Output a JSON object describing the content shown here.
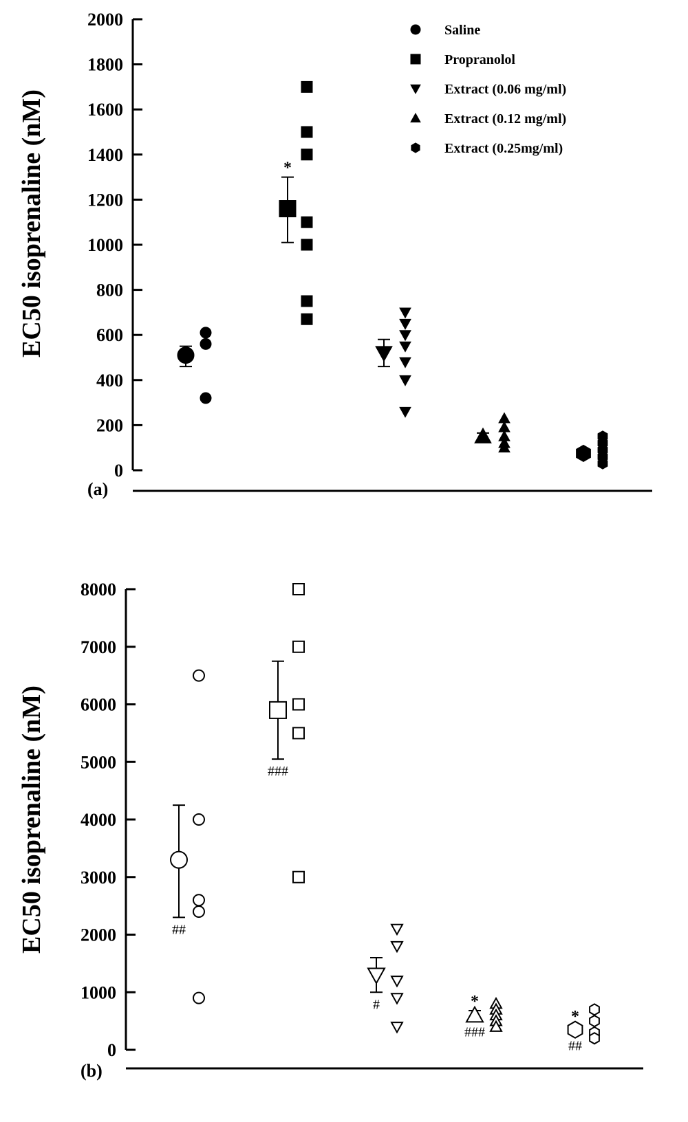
{
  "chart_data": [
    {
      "panel": "(a)",
      "type": "scatter",
      "ylabel": "EC50 isoprenaline (nM)",
      "ylim": [
        0,
        2000
      ],
      "yticks": [
        0,
        200,
        400,
        600,
        800,
        1000,
        1200,
        1400,
        1600,
        1800,
        2000
      ],
      "filled": true,
      "legend_position": "top-right",
      "series": [
        {
          "name": "Saline",
          "marker": "circle",
          "mean": 510,
          "err_low": 460,
          "err_high": 550,
          "points": [
            610,
            560,
            320
          ],
          "annotation": ""
        },
        {
          "name": "Propranolol",
          "marker": "square",
          "mean": 1160,
          "err_low": 1010,
          "err_high": 1300,
          "points": [
            1700,
            1500,
            1400,
            1100,
            1000,
            750,
            670
          ],
          "annotation": "*"
        },
        {
          "name": "Extract (0.06 mg/ml)",
          "marker": "triangle-down",
          "mean": 520,
          "err_low": 460,
          "err_high": 580,
          "points": [
            700,
            650,
            600,
            550,
            480,
            400,
            260
          ],
          "annotation": ""
        },
        {
          "name": "Extract (0.12 mg/ml)",
          "marker": "triangle-up",
          "mean": 150,
          "err_low": 135,
          "err_high": 165,
          "points": [
            230,
            190,
            150,
            120,
            100
          ],
          "annotation": ""
        },
        {
          "name": "Extract (0.25mg/ml)",
          "marker": "hexagon",
          "mean": 75,
          "err_low": 60,
          "err_high": 90,
          "points": [
            150,
            120,
            90,
            60,
            30
          ],
          "annotation": ""
        }
      ]
    },
    {
      "panel": "(b)",
      "type": "scatter",
      "ylabel": "EC50 isoprenaline (nM)",
      "ylim": [
        0,
        8000
      ],
      "yticks": [
        0,
        1000,
        2000,
        3000,
        4000,
        5000,
        6000,
        7000,
        8000
      ],
      "filled": false,
      "series": [
        {
          "name": "Saline",
          "marker": "circle",
          "mean": 3300,
          "err_low": 2300,
          "err_high": 4250,
          "points": [
            6500,
            4000,
            2600,
            2400,
            900
          ],
          "annotation": "##",
          "annotation_top": ""
        },
        {
          "name": "Propranolol",
          "marker": "square",
          "mean": 5900,
          "err_low": 5050,
          "err_high": 6750,
          "points": [
            8000,
            7000,
            6000,
            5500,
            3000
          ],
          "annotation": "###",
          "annotation_top": ""
        },
        {
          "name": "Extract (0.06 mg/ml)",
          "marker": "triangle-down",
          "mean": 1300,
          "err_low": 1000,
          "err_high": 1600,
          "points": [
            2100,
            1800,
            1200,
            900,
            400
          ],
          "annotation": "#",
          "annotation_top": ""
        },
        {
          "name": "Extract (0.12 mg/ml)",
          "marker": "triangle-up",
          "mean": 600,
          "err_low": 520,
          "err_high": 680,
          "points": [
            800,
            700,
            600,
            500,
            400
          ],
          "annotation": "###",
          "annotation_top": "*"
        },
        {
          "name": "Extract (0.25mg/ml)",
          "marker": "hexagon",
          "mean": 350,
          "err_low": 280,
          "err_high": 420,
          "points": [
            700,
            500,
            300,
            200
          ],
          "annotation": "##",
          "annotation_top": "*"
        }
      ]
    }
  ]
}
